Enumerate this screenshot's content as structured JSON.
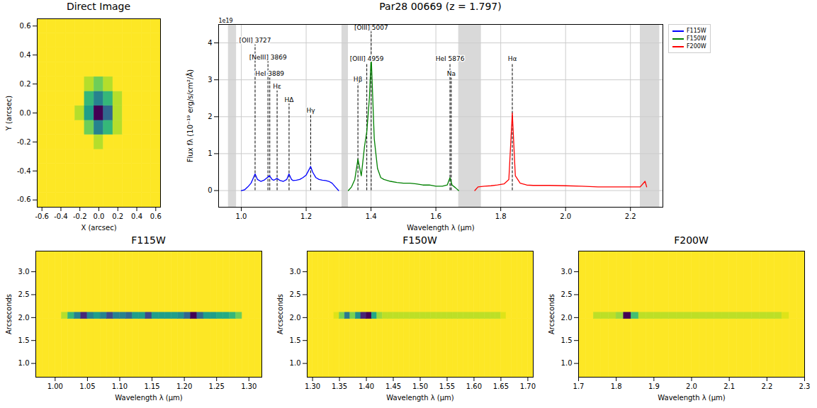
{
  "chart_data": [
    {
      "type": "heatmap",
      "title": "Direct Image",
      "xlabel": "X (arcsec)",
      "ylabel": "Y (arcsec)",
      "xlim": [
        -0.65,
        0.65
      ],
      "ylim": [
        -0.65,
        0.65
      ],
      "xticks": [
        -0.6,
        -0.4,
        -0.2,
        {
          "value": 0,
          "label": "0.0"
        },
        0.2,
        0.4,
        0.6
      ],
      "yticks": [
        -0.6,
        -0.4,
        -0.2,
        {
          "value": 0,
          "label": "0.0"
        },
        0.2,
        0.4,
        0.6
      ],
      "color": "viridis_r",
      "x_edges": [
        -0.65,
        -0.55,
        -0.45,
        -0.35,
        -0.25,
        -0.15,
        -0.05,
        0.05,
        0.15,
        0.25,
        0.35,
        0.45,
        0.55,
        0.65
      ],
      "y_edges": [
        -0.65,
        -0.55,
        -0.45,
        -0.35,
        -0.25,
        -0.15,
        -0.05,
        0.05,
        0.15,
        0.25,
        0.35,
        0.45,
        0.55,
        0.65
      ],
      "values": [
        [
          0,
          0,
          0,
          0,
          0,
          0,
          0,
          0,
          0,
          0,
          0,
          0,
          0
        ],
        [
          0,
          0,
          0,
          0,
          0,
          0,
          0,
          0,
          0,
          0,
          0,
          0,
          0
        ],
        [
          0,
          0,
          0,
          0,
          0,
          0,
          0,
          0,
          0,
          0,
          0,
          0,
          0
        ],
        [
          0,
          0,
          0,
          0,
          0,
          0,
          0,
          0,
          0,
          0,
          0,
          0,
          0
        ],
        [
          0,
          0,
          0,
          0,
          0,
          0,
          1,
          0,
          0,
          0,
          0,
          0,
          0
        ],
        [
          0,
          0,
          0,
          0,
          0,
          2,
          5,
          3,
          1,
          0,
          0,
          0,
          0
        ],
        [
          0,
          0,
          0,
          0,
          1,
          4,
          9,
          6,
          1,
          0,
          0,
          0,
          0
        ],
        [
          0,
          0,
          0,
          0,
          0,
          3,
          5,
          3,
          1,
          0,
          0,
          0,
          0
        ],
        [
          0,
          0,
          0,
          0,
          0,
          1,
          2,
          1,
          0,
          0,
          0,
          0,
          0
        ],
        [
          0,
          0,
          0,
          0,
          0,
          0,
          0,
          0,
          0,
          0,
          0,
          0,
          0
        ],
        [
          0,
          0,
          0,
          0,
          0,
          0,
          0,
          0,
          0,
          0,
          0,
          0,
          0
        ],
        [
          0,
          0,
          0,
          0,
          0,
          0,
          0,
          0,
          0,
          0,
          0,
          0,
          0
        ],
        [
          0,
          0,
          0,
          0,
          0,
          0,
          0,
          0,
          0,
          0,
          0,
          0,
          0
        ]
      ]
    },
    {
      "type": "line",
      "title": "Par28 00669 (z = 1.797)",
      "xlabel": "Wavelength λ (μm)",
      "ylabel": "Flux fλ (10⁻¹⁹ erg/s/cm²/Å)",
      "y_offset_label": "1e19",
      "xlim": [
        0.93,
        2.3
      ],
      "ylim": [
        -0.45,
        4.5
      ],
      "xticks": [
        {
          "value": 1,
          "label": "1.0"
        },
        1.2,
        1.4,
        1.6,
        1.8,
        {
          "value": 2,
          "label": "2.0"
        },
        2.2
      ],
      "yticks": [
        0,
        1,
        2,
        3,
        4
      ],
      "grid": true,
      "legend": "right",
      "bands": [
        [
          0.96,
          0.985
        ],
        [
          1.31,
          1.33
        ],
        [
          1.67,
          1.74
        ],
        [
          2.23,
          2.29
        ]
      ],
      "series": [
        {
          "name": "F115W",
          "color": "blue",
          "x": [
            1.0,
            1.01,
            1.02,
            1.03,
            1.035,
            1.0425,
            1.05,
            1.06,
            1.07,
            1.08,
            1.087,
            1.095,
            1.1,
            1.11,
            1.12,
            1.13,
            1.14,
            1.147,
            1.155,
            1.16,
            1.17,
            1.18,
            1.19,
            1.2,
            1.2139,
            1.22,
            1.23,
            1.24,
            1.25,
            1.26,
            1.27,
            1.28,
            1.29,
            1.3
          ],
          "values": [
            0.0,
            0.02,
            0.1,
            0.2,
            0.3,
            0.45,
            0.3,
            0.25,
            0.28,
            0.35,
            0.4,
            0.3,
            0.28,
            0.33,
            0.27,
            0.25,
            0.3,
            0.45,
            0.3,
            0.27,
            0.28,
            0.3,
            0.35,
            0.42,
            0.65,
            0.5,
            0.35,
            0.3,
            0.28,
            0.27,
            0.25,
            0.2,
            0.1,
            0.0
          ]
        },
        {
          "name": "F150W",
          "color": "green",
          "x": [
            1.33,
            1.34,
            1.35,
            1.3596,
            1.37,
            1.38,
            1.387,
            1.395,
            1.4005,
            1.41,
            1.42,
            1.43,
            1.44,
            1.46,
            1.48,
            1.5,
            1.52,
            1.54,
            1.56,
            1.58,
            1.6,
            1.62,
            1.635,
            1.6435,
            1.65,
            1.66,
            1.67
          ],
          "values": [
            0.0,
            0.1,
            0.3,
            0.85,
            0.4,
            1.2,
            1.6,
            2.5,
            3.65,
            1.4,
            0.6,
            0.35,
            0.3,
            0.25,
            0.22,
            0.2,
            0.2,
            0.18,
            0.15,
            0.15,
            0.12,
            0.12,
            0.15,
            0.35,
            0.15,
            0.08,
            0.0
          ]
        },
        {
          "name": "F200W",
          "color": "red",
          "x": [
            1.72,
            1.73,
            1.75,
            1.77,
            1.79,
            1.81,
            1.825,
            1.8357,
            1.845,
            1.86,
            1.88,
            1.9,
            1.95,
            2.0,
            2.05,
            2.1,
            2.15,
            2.2,
            2.23,
            2.245,
            2.25
          ],
          "values": [
            0.0,
            0.1,
            0.12,
            0.13,
            0.15,
            0.18,
            0.3,
            2.1,
            0.4,
            0.2,
            0.15,
            0.14,
            0.14,
            0.13,
            0.12,
            0.1,
            0.1,
            0.1,
            0.1,
            0.25,
            0.1
          ]
        }
      ],
      "annotations": [
        {
          "text": "[OII] 3727",
          "x": 1.0425,
          "y": 3.95
        },
        {
          "text": "[NeIII] 3869",
          "x": 1.0822,
          "y": 3.5
        },
        {
          "text": "HeI 3889",
          "x": 1.0878,
          "y": 3.05
        },
        {
          "text": "Hε",
          "x": 1.1104,
          "y": 2.7
        },
        {
          "text": "HΔ",
          "x": 1.1473,
          "y": 2.35
        },
        {
          "text": "Hγ",
          "x": 1.2139,
          "y": 2.05
        },
        {
          "text": "Hβ",
          "x": 1.3596,
          "y": 2.9
        },
        {
          "text": "[OIII] 4959",
          "x": 1.387,
          "y": 3.45
        },
        {
          "text": "[OIII] 5007",
          "x": 1.4005,
          "y": 4.3
        },
        {
          "text": "HeI 5876",
          "x": 1.6435,
          "y": 3.45
        },
        {
          "text": "Na",
          "x": 1.6474,
          "y": 3.05
        },
        {
          "text": "Hα",
          "x": 1.8357,
          "y": 3.45
        }
      ]
    },
    {
      "type": "heatmap",
      "title": "F115W",
      "xlabel": "Wavelength λ (μm)",
      "ylabel": "Arcseconds",
      "xlim": [
        0.97,
        1.32
      ],
      "ylim": [
        0.7,
        3.45
      ],
      "xticks": [
        {
          "value": 1,
          "label": "1.00"
        },
        1.05,
        {
          "value": 1.1,
          "label": "1.10"
        },
        1.15,
        {
          "value": 1.2,
          "label": "1.20"
        },
        1.25,
        {
          "value": 1.3,
          "label": "1.30"
        }
      ],
      "yticks": [
        {
          "value": 1,
          "label": "1.0"
        },
        1.5,
        {
          "value": 2,
          "label": "2.0"
        },
        2.5,
        {
          "value": 3,
          "label": "3.0"
        }
      ],
      "color": "viridis_r",
      "x_edges": [
        0.97,
        0.98,
        0.99,
        1.0,
        1.01,
        1.02,
        1.03,
        1.04,
        1.05,
        1.06,
        1.07,
        1.08,
        1.09,
        1.1,
        1.11,
        1.12,
        1.13,
        1.14,
        1.15,
        1.16,
        1.17,
        1.18,
        1.19,
        1.2,
        1.21,
        1.22,
        1.23,
        1.24,
        1.25,
        1.26,
        1.27,
        1.28,
        1.29,
        1.3,
        1.31,
        1.32
      ],
      "y_edges": [
        0.7,
        1.97,
        2.12,
        3.45
      ],
      "values": [
        [
          0,
          0,
          0,
          0,
          0,
          0,
          0,
          0,
          0,
          0,
          0,
          0,
          0,
          0,
          0,
          0,
          0,
          0,
          0,
          0,
          0,
          0,
          0,
          0,
          0,
          0,
          0,
          0,
          0,
          0,
          0,
          0,
          0,
          0,
          0
        ],
        [
          0,
          0,
          0,
          0,
          0.1,
          0.3,
          0.5,
          0.8,
          0.5,
          0.4,
          0.5,
          0.7,
          0.5,
          0.5,
          0.6,
          0.4,
          0.4,
          0.7,
          0.4,
          0.4,
          0.4,
          0.4,
          0.45,
          0.6,
          0.9,
          0.6,
          0.4,
          0.4,
          0.35,
          0.35,
          0.3,
          0.2,
          0,
          0,
          0
        ],
        [
          0,
          0,
          0,
          0,
          0,
          0,
          0,
          0,
          0,
          0,
          0,
          0,
          0,
          0,
          0,
          0,
          0,
          0,
          0,
          0,
          0,
          0,
          0,
          0,
          0,
          0,
          0,
          0,
          0,
          0,
          0,
          0,
          0,
          0,
          0
        ]
      ]
    },
    {
      "type": "heatmap",
      "title": "F150W",
      "xlabel": "Wavelength λ (μm)",
      "ylabel": "Arcseconds",
      "xlim": [
        1.29,
        1.71
      ],
      "ylim": [
        0.7,
        3.45
      ],
      "xticks": [
        {
          "value": 1.3,
          "label": "1.30"
        },
        1.35,
        {
          "value": 1.4,
          "label": "1.40"
        },
        1.45,
        {
          "value": 1.5,
          "label": "1.50"
        },
        1.55,
        {
          "value": 1.6,
          "label": "1.60"
        },
        1.65,
        {
          "value": 1.7,
          "label": "1.70"
        }
      ],
      "yticks": [
        {
          "value": 1,
          "label": "1.0"
        },
        1.5,
        {
          "value": 2,
          "label": "2.0"
        },
        2.5,
        {
          "value": 3,
          "label": "3.0"
        }
      ],
      "color": "viridis_r",
      "x_edges": [
        1.29,
        1.3,
        1.31,
        1.32,
        1.33,
        1.34,
        1.35,
        1.36,
        1.37,
        1.38,
        1.39,
        1.4,
        1.41,
        1.42,
        1.43,
        1.44,
        1.45,
        1.46,
        1.47,
        1.48,
        1.49,
        1.5,
        1.51,
        1.52,
        1.53,
        1.54,
        1.55,
        1.56,
        1.57,
        1.58,
        1.59,
        1.6,
        1.61,
        1.62,
        1.63,
        1.64,
        1.65,
        1.66,
        1.67,
        1.68,
        1.69,
        1.7,
        1.71
      ],
      "y_edges": [
        0.7,
        1.97,
        2.12,
        3.45
      ],
      "values": [
        [
          0,
          0,
          0,
          0,
          0,
          0,
          0,
          0,
          0,
          0,
          0,
          0,
          0,
          0,
          0,
          0,
          0,
          0,
          0,
          0,
          0,
          0,
          0,
          0,
          0,
          0,
          0,
          0,
          0,
          0,
          0,
          0,
          0,
          0,
          0,
          0,
          0,
          0,
          0,
          0,
          0,
          0
        ],
        [
          0,
          0,
          0,
          0,
          0,
          0.05,
          0.2,
          0.6,
          0.2,
          0.5,
          0.9,
          1,
          0.4,
          0.15,
          0.1,
          0.1,
          0.1,
          0.1,
          0.1,
          0.1,
          0.1,
          0.1,
          0.1,
          0.1,
          0.1,
          0.1,
          0.1,
          0.1,
          0.1,
          0.1,
          0.1,
          0.1,
          0.1,
          0.1,
          0.1,
          0.1,
          0.05,
          0,
          0,
          0,
          0,
          0
        ],
        [
          0,
          0,
          0,
          0,
          0,
          0,
          0,
          0,
          0,
          0,
          0,
          0,
          0,
          0,
          0,
          0,
          0,
          0,
          0,
          0,
          0,
          0,
          0,
          0,
          0,
          0,
          0,
          0,
          0,
          0,
          0,
          0,
          0,
          0,
          0,
          0,
          0,
          0,
          0,
          0,
          0,
          0
        ]
      ]
    },
    {
      "type": "heatmap",
      "title": "F200W",
      "xlabel": "Wavelength λ (μm)",
      "ylabel": "Arcseconds",
      "xlim": [
        1.7,
        2.3
      ],
      "ylim": [
        0.7,
        3.45
      ],
      "xticks": [
        1.7,
        1.8,
        1.9,
        {
          "value": 2,
          "label": "2.0"
        },
        2.1,
        2.2,
        2.3
      ],
      "yticks": [
        {
          "value": 1,
          "label": "1.0"
        },
        1.5,
        {
          "value": 2,
          "label": "2.0"
        },
        2.5,
        {
          "value": 3,
          "label": "3.0"
        }
      ],
      "color": "viridis_r",
      "x_edges": [
        1.7,
        1.72,
        1.74,
        1.76,
        1.78,
        1.8,
        1.82,
        1.84,
        1.86,
        1.88,
        1.9,
        1.92,
        1.94,
        1.96,
        1.98,
        2.0,
        2.02,
        2.04,
        2.06,
        2.08,
        2.1,
        2.12,
        2.14,
        2.16,
        2.18,
        2.2,
        2.22,
        2.24,
        2.26,
        2.28,
        2.3
      ],
      "y_edges": [
        0.7,
        1.97,
        2.12,
        3.45
      ],
      "values": [
        [
          0,
          0,
          0,
          0,
          0,
          0,
          0,
          0,
          0,
          0,
          0,
          0,
          0,
          0,
          0,
          0,
          0,
          0,
          0,
          0,
          0,
          0,
          0,
          0,
          0,
          0,
          0,
          0,
          0,
          0
        ],
        [
          0,
          0,
          0.1,
          0.1,
          0.1,
          0.15,
          1,
          0.3,
          0.1,
          0.1,
          0.1,
          0.1,
          0.1,
          0.1,
          0.1,
          0.1,
          0.1,
          0.1,
          0.1,
          0.1,
          0.1,
          0.1,
          0.1,
          0.1,
          0.1,
          0.1,
          0.1,
          0.05,
          0,
          0
        ],
        [
          0,
          0,
          0,
          0,
          0,
          0,
          0,
          0,
          0,
          0,
          0,
          0,
          0,
          0,
          0,
          0,
          0,
          0,
          0,
          0,
          0,
          0,
          0,
          0,
          0,
          0,
          0,
          0,
          0,
          0
        ]
      ]
    }
  ]
}
